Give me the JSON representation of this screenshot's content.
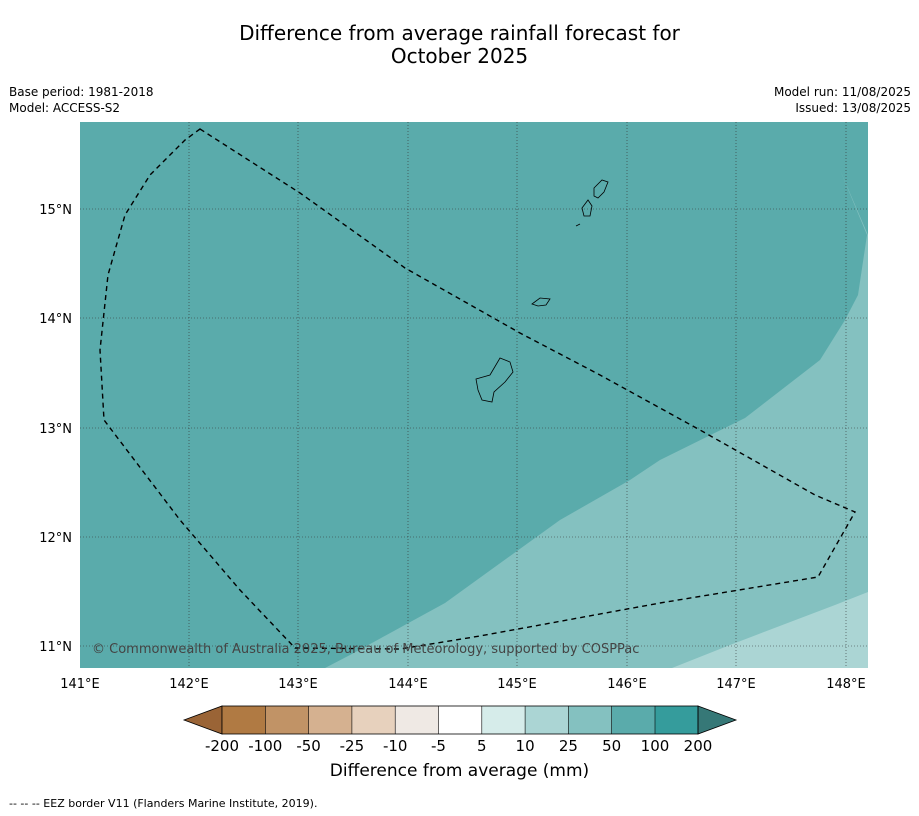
{
  "title": {
    "line1": "Difference from average rainfall forecast for",
    "line2": "October 2025"
  },
  "meta_left": {
    "base_period": "Base period: 1981-2018",
    "model": "Model: ACCESS-S2"
  },
  "meta_right": {
    "model_run": "Model run: 11/08/2025",
    "issued": "Issued: 13/08/2025"
  },
  "map": {
    "lon_range": [
      141,
      148.2
    ],
    "lat_range": [
      10.8,
      15.8
    ],
    "lon_ticks": [
      "141°E",
      "142°E",
      "143°E",
      "144°E",
      "145°E",
      "146°E",
      "147°E",
      "148°E"
    ],
    "lat_ticks": [
      "15°N",
      "14°N",
      "13°N",
      "12°N",
      "11°N"
    ],
    "copyright": "© Commonwealth of Australia 2025, Bureau of Meteorology, supported by COSPPac",
    "grid": true,
    "colors": {
      "band_100_200": "#5aabab",
      "band_50_100": "#84c1c0",
      "band_25_50": "#abd5d4"
    }
  },
  "colorbar": {
    "labels": [
      "-200",
      "-100",
      "-50",
      "-25",
      "-10",
      "-5",
      "5",
      "10",
      "25",
      "50",
      "100",
      "200"
    ],
    "colors": [
      "#9a6436",
      "#b07a43",
      "#c19366",
      "#d5b190",
      "#e7d1bd",
      "#efe9e4",
      "#ffffff",
      "#d6ecea",
      "#abd5d4",
      "#84c1c0",
      "#5aabab",
      "#359c9c",
      "#367877"
    ],
    "title": "Difference from average (mm)"
  },
  "footnote": "--  --  -- EEZ border V11 (Flanders Marine Institute, 2019)."
}
